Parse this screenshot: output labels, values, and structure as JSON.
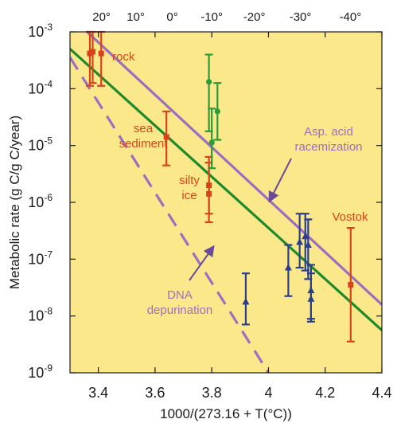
{
  "chart_data": {
    "type": "scatter",
    "xlabel": "1000/(273.16 + T(°C))",
    "ylabel": "Metabolic rate (g C/g C/year)",
    "xlim": [
      3.3,
      4.4
    ],
    "ylim_log10": [
      -9,
      -3
    ],
    "x_ticks": [
      "3.4",
      "3.6",
      "3.8",
      "4",
      "4.2",
      "4.4"
    ],
    "x_tick_values": [
      3.4,
      3.6,
      3.8,
      4.0,
      4.2,
      4.4
    ],
    "y_ticks": [
      {
        "base": "10",
        "exp": "-3",
        "log": -3
      },
      {
        "base": "10",
        "exp": "-4",
        "log": -4
      },
      {
        "base": "10",
        "exp": "-5",
        "log": -5
      },
      {
        "base": "10",
        "exp": "-6",
        "log": -6
      },
      {
        "base": "10",
        "exp": "-7",
        "log": -7
      },
      {
        "base": "10",
        "exp": "-8",
        "log": -8
      },
      {
        "base": "10",
        "exp": "-9",
        "log": -9
      }
    ],
    "top_ticks": [
      {
        "label": "20°",
        "temp_c": 20
      },
      {
        "label": "10°",
        "temp_c": 10
      },
      {
        "label": "0°",
        "temp_c": 0
      },
      {
        "label": "-10°",
        "temp_c": -10
      },
      {
        "label": "-20°",
        "temp_c": -20
      },
      {
        "label": "-30°",
        "temp_c": -30
      },
      {
        "label": "-40°",
        "temp_c": -40
      }
    ],
    "lines": [
      {
        "name": "Asp. acid racemization",
        "style": "solid",
        "color": "#9b6fc0",
        "points": [
          [
            3.36,
            -3.0
          ],
          [
            4.4,
            -7.8
          ]
        ]
      },
      {
        "name": "DNA depurination",
        "style": "dashed",
        "color": "#9b6fc0",
        "points": [
          [
            3.3,
            -3.45
          ],
          [
            4.0,
            -9.0
          ]
        ]
      },
      {
        "name": "",
        "style": "solid",
        "color": "#1f8a2c",
        "points": [
          [
            3.3,
            -3.3
          ],
          [
            4.4,
            -8.25
          ]
        ]
      }
    ],
    "series": [
      {
        "group": "rock",
        "color": "#d9431c",
        "points": [
          {
            "x": 3.37,
            "y": -3.38,
            "ylo": -3.95,
            "yhi": -3.0
          },
          {
            "x": 3.38,
            "y": -3.35,
            "ylo": -3.9,
            "yhi": -3.0
          },
          {
            "x": 3.41,
            "y": -3.38,
            "ylo": -3.95,
            "yhi": -3.0
          }
        ]
      },
      {
        "group": "sea sediment",
        "color": "#d9431c",
        "points": [
          {
            "x": 3.64,
            "y": -4.85,
            "ylo": -5.35,
            "yhi": -4.4
          }
        ]
      },
      {
        "group": "silty ice",
        "color": "#d9431c",
        "points": [
          {
            "x": 3.79,
            "y": -5.85,
            "ylo": -6.35,
            "yhi": -5.3
          },
          {
            "x": 3.79,
            "y": -5.7,
            "ylo": -6.2,
            "yhi": -5.2
          }
        ]
      },
      {
        "group": "Vostok",
        "color": "#d9431c",
        "points": [
          {
            "x": 4.29,
            "y": -7.45,
            "ylo": -8.45,
            "yhi": -6.45
          }
        ]
      },
      {
        "group": "green",
        "color": "#2a9a3a",
        "points": [
          {
            "x": 3.79,
            "y": -3.88,
            "ylo": -4.75,
            "yhi": -3.4
          },
          {
            "x": 3.8,
            "y": -4.95,
            "ylo": -5.4,
            "yhi": -4.35
          },
          {
            "x": 3.82,
            "y": -4.4,
            "ylo": -4.9,
            "yhi": -3.9
          }
        ]
      },
      {
        "group": "blue",
        "color": "#2b3f8c",
        "points": [
          {
            "x": 3.92,
            "y": -7.75,
            "ylo": -8.15,
            "yhi": -7.25
          },
          {
            "x": 4.07,
            "y": -7.15,
            "ylo": -7.65,
            "yhi": -6.75
          },
          {
            "x": 4.11,
            "y": -6.7,
            "ylo": -7.15,
            "yhi": -6.2
          },
          {
            "x": 4.13,
            "y": -6.6,
            "ylo": -7.2,
            "yhi": -6.2
          },
          {
            "x": 4.14,
            "y": -6.75,
            "ylo": -7.35,
            "yhi": -6.3
          },
          {
            "x": 4.15,
            "y": -7.7,
            "ylo": -8.1,
            "yhi": -7.25
          },
          {
            "x": 4.15,
            "y": -7.55,
            "ylo": -8.05,
            "yhi": -7.1
          }
        ]
      }
    ],
    "annotations": [
      {
        "text": "rock",
        "color": "#d9431c",
        "lines": [
          "rock"
        ]
      },
      {
        "text": "sea sediment",
        "color": "#d9431c",
        "lines": [
          "sea",
          "sediment"
        ]
      },
      {
        "text": "silty ice",
        "color": "#d9431c",
        "lines": [
          "silty",
          "ice"
        ]
      },
      {
        "text": "Vostok",
        "color": "#d9431c",
        "lines": [
          "Vostok"
        ]
      },
      {
        "text": "Asp. acid racemization",
        "color": "#9b6fc0",
        "lines": [
          "Asp. acid",
          "racemization"
        ]
      },
      {
        "text": "DNA depurination",
        "color": "#9b6fc0",
        "lines": [
          "DNA",
          "depurination"
        ]
      }
    ],
    "plot_background": "#fbe88a"
  }
}
